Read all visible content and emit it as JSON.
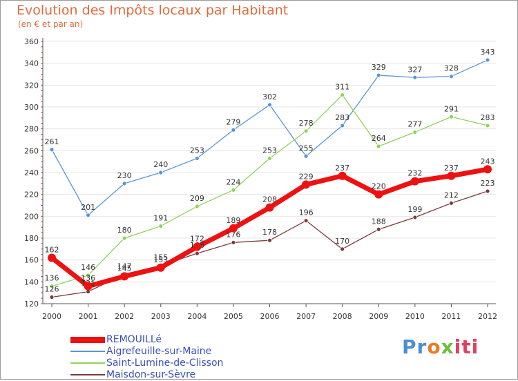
{
  "chart_data": {
    "type": "line",
    "title": "Evolution des Impôts locaux par Habitant",
    "subtitle": "(en € et par an)",
    "xlabel": "",
    "ylabel": "",
    "ylim": [
      120,
      360
    ],
    "yticks": [
      120,
      140,
      160,
      180,
      200,
      220,
      240,
      260,
      280,
      300,
      320,
      340,
      360
    ],
    "categories": [
      "2000",
      "2001",
      "2002",
      "2003",
      "2004",
      "2005",
      "2006",
      "2007",
      "2008",
      "2009",
      "2010",
      "2011",
      "2012"
    ],
    "series": [
      {
        "name": "Aigrefeuille-sur-Maine",
        "color": "#5b95d0",
        "values": [
          261,
          201,
          230,
          240,
          253,
          279,
          302,
          255,
          283,
          329,
          327,
          328,
          343
        ]
      },
      {
        "name": "Saint-Lumine-de-Clisson",
        "color": "#92d05a",
        "values": [
          136,
          146,
          180,
          191,
          209,
          224,
          253,
          278,
          311,
          264,
          277,
          291,
          283
        ]
      },
      {
        "name": "Maisdon-sur-Sèvre",
        "color": "#7a3a3a",
        "values": [
          126,
          131,
          147,
          155,
          166,
          176,
          178,
          196,
          170,
          188,
          199,
          212,
          223
        ]
      },
      {
        "name": "REMOUILLé",
        "color": "#ee1111",
        "values": [
          162,
          136,
          145,
          153,
          172,
          189,
          208,
          229,
          237,
          220,
          232,
          237,
          243
        ]
      }
    ],
    "label_colors": {
      "Aigrefeuille-sur-Maine": "#333333",
      "Saint-Lumine-de-Clisson": "#333333",
      "Maisdon-sur-Sèvre": "#333333",
      "REMOUILLé": "#333333"
    },
    "legend_order": [
      "REMOUILLé",
      "Aigrefeuille-sur-Maine",
      "Saint-Lumine-de-Clisson",
      "Maisdon-sur-Sèvre"
    ],
    "legend_position": "bottom-left"
  },
  "brand": {
    "part1": "Pr",
    "part2": "o",
    "part3": "x",
    "part4": "iti"
  },
  "colors": {
    "title": "#e26a3a",
    "axis": "#333333",
    "grid": "#e6e6e6"
  }
}
